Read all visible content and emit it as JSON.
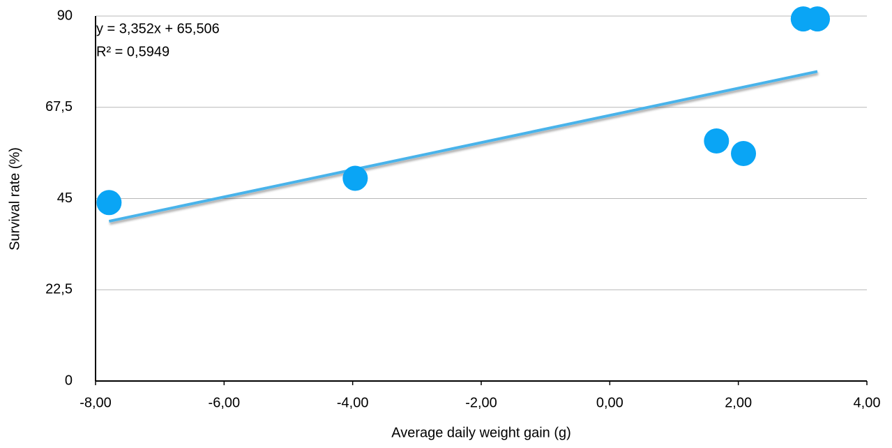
{
  "chart_data": {
    "type": "scatter",
    "x_label": "Average daily weight gain (g)",
    "y_label": "Survival rate (%)",
    "annotations": [
      "y = 3,352x + 65,506",
      "R² = 0,5949"
    ],
    "series": [
      {
        "color": "#0aa5f5",
        "x": [
          -7.79,
          -3.96,
          1.66,
          2.08,
          3.01,
          3.23
        ],
        "values": [
          44,
          50,
          59.2,
          56.1,
          89.3,
          89.3
        ]
      }
    ],
    "trendline": {
      "slope": 3.352,
      "intercept": 65.506,
      "color": "#4ab3ea"
    },
    "xlim": [
      -8,
      4
    ],
    "xticks": [
      {
        "value": -8,
        "label": "-8,00"
      },
      {
        "value": -6,
        "label": "-6,00"
      },
      {
        "value": -4,
        "label": "-4,00"
      },
      {
        "value": -2,
        "label": "-2,00"
      },
      {
        "value": 0,
        "label": "0,00"
      },
      {
        "value": 2,
        "label": "2,00"
      },
      {
        "value": 4,
        "label": "4,00"
      }
    ],
    "ylim": [
      0,
      90
    ],
    "yticks": [
      0,
      {
        "value": 22.5,
        "label": "22,5"
      },
      45,
      {
        "value": 67.5,
        "label": "67,5"
      },
      90
    ],
    "grid": true
  }
}
